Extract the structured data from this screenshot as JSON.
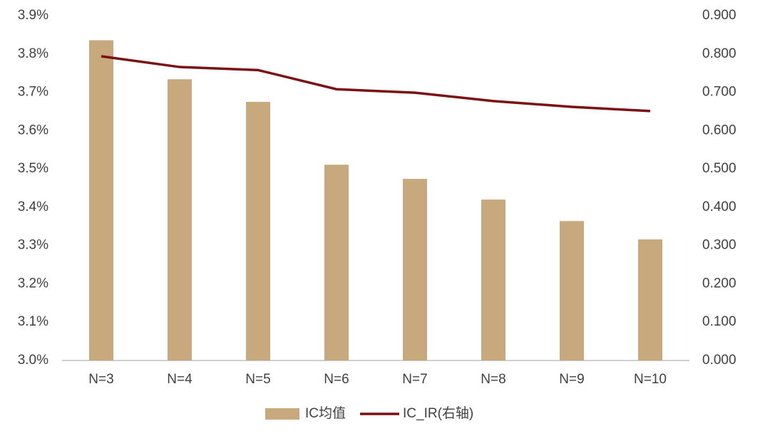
{
  "chart_data": {
    "type": "bar_line",
    "categories": [
      "N=3",
      "N=4",
      "N=5",
      "N=6",
      "N=7",
      "N=8",
      "N=9",
      "N=10"
    ],
    "series": [
      {
        "name": "IC均值",
        "type": "bar",
        "color": "#c8a97e",
        "values": [
          3.836,
          3.734,
          3.675,
          3.511,
          3.474,
          3.42,
          3.364,
          3.316
        ]
      },
      {
        "name": "IC_IR(右轴)",
        "type": "line",
        "axis": "y2",
        "color": "#7b1113",
        "values": [
          0.794,
          0.766,
          0.758,
          0.708,
          0.699,
          0.677,
          0.662,
          0.651
        ]
      }
    ],
    "ylim": [
      3.0,
      3.9
    ],
    "yticks": [
      {
        "value": 3.0,
        "label": "3.0%"
      },
      {
        "value": 3.1,
        "label": "3.1%"
      },
      {
        "value": 3.2,
        "label": "3.2%"
      },
      {
        "value": 3.3,
        "label": "3.3%"
      },
      {
        "value": 3.4,
        "label": "3.4%"
      },
      {
        "value": 3.5,
        "label": "3.5%"
      },
      {
        "value": 3.6,
        "label": "3.6%"
      },
      {
        "value": 3.7,
        "label": "3.7%"
      },
      {
        "value": 3.8,
        "label": "3.8%"
      },
      {
        "value": 3.9,
        "label": "3.9%"
      }
    ],
    "y2lim": [
      0,
      0.9
    ],
    "y2ticks": [
      {
        "value": 0,
        "label": "0.000"
      },
      {
        "value": 0.1,
        "label": "0.100"
      },
      {
        "value": 0.2,
        "label": "0.200"
      },
      {
        "value": 0.3,
        "label": "0.300"
      },
      {
        "value": 0.4,
        "label": "0.400"
      },
      {
        "value": 0.5,
        "label": "0.500"
      },
      {
        "value": 0.6,
        "label": "0.600"
      },
      {
        "value": 0.7,
        "label": "0.700"
      },
      {
        "value": 0.8,
        "label": "0.800"
      },
      {
        "value": 0.9,
        "label": "0.900"
      }
    ],
    "grid": false,
    "legend": "bottom"
  }
}
